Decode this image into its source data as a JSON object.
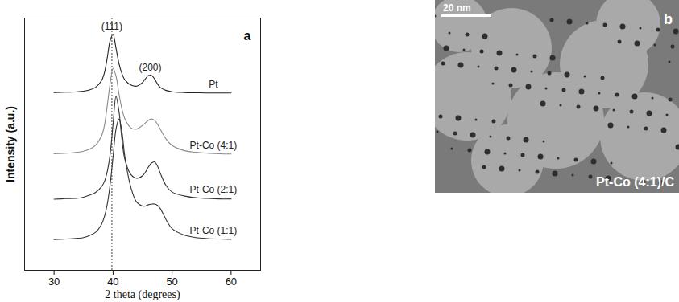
{
  "chart_data": {
    "type": "line",
    "panel": "a",
    "xlabel": "2 theta (degrees)",
    "ylabel": "Intensity (a.u.)",
    "xlim": [
      25,
      65
    ],
    "xticks": [
      30,
      40,
      50,
      60
    ],
    "ylim": [
      0,
      100
    ],
    "yticks": [],
    "tick_labels": "x",
    "vline_x": 39.8,
    "annotations": [
      {
        "text": "(111)",
        "x": 39.8
      },
      {
        "text": "(200)",
        "x": 46.3
      }
    ],
    "x": [
      30,
      32,
      34,
      35,
      36,
      37,
      38,
      38.5,
      39,
      39.5,
      40,
      40.5,
      41,
      41.5,
      42,
      43,
      44,
      45,
      45.5,
      46,
      46.5,
      47,
      47.5,
      48,
      49,
      50,
      52,
      54,
      56,
      58,
      60
    ],
    "series": [
      {
        "name": "Pt",
        "color": "#222222",
        "values": [
          70.5,
          70.6,
          70.8,
          71,
          71.5,
          72.5,
          75,
          78,
          84,
          91,
          93.5,
          88,
          82,
          78,
          75.5,
          73.5,
          73,
          74.5,
          76,
          77.2,
          77.3,
          76,
          74,
          72.5,
          71.3,
          70.8,
          70.5,
          70.4,
          70.3,
          70.3,
          70.3
        ]
      },
      {
        "name": "Pt-Co (4:1)",
        "color": "#8a8a8a",
        "values": [
          46.2,
          46.4,
          46.8,
          47.2,
          48,
          49.5,
          53,
          57,
          65,
          74,
          80,
          77,
          70,
          64,
          60,
          56.5,
          56,
          57.5,
          58.5,
          59.5,
          60,
          59.5,
          58,
          56,
          52,
          49.5,
          47.5,
          46.8,
          46.4,
          46.2,
          46.1
        ]
      },
      {
        "name": "Pt-Co (2:1)",
        "color": "#333333",
        "values": [
          28.2,
          28.4,
          28.6,
          29,
          29.8,
          30.8,
          33,
          35,
          39,
          46,
          58,
          69,
          63,
          52,
          44,
          38,
          36.5,
          37.5,
          39,
          41,
          42.5,
          43,
          41.5,
          38.5,
          33.5,
          31,
          29.5,
          28.8,
          28.5,
          28.3,
          28.3
        ]
      },
      {
        "name": "Pt-Co (1:1)",
        "color": "#333333",
        "values": [
          12.2,
          12.4,
          12.7,
          13,
          13.8,
          15,
          18,
          21,
          26,
          34,
          45,
          56,
          60,
          55,
          45,
          33,
          27,
          25.5,
          25.5,
          26,
          26.2,
          26.3,
          25.8,
          24.5,
          20,
          16.5,
          14,
          13,
          12.6,
          12.4,
          12.3
        ]
      }
    ]
  },
  "panel_b": {
    "type": "image",
    "label": "b",
    "scale_bar": "20 nm",
    "caption": "Pt-Co (4:1)/C"
  }
}
